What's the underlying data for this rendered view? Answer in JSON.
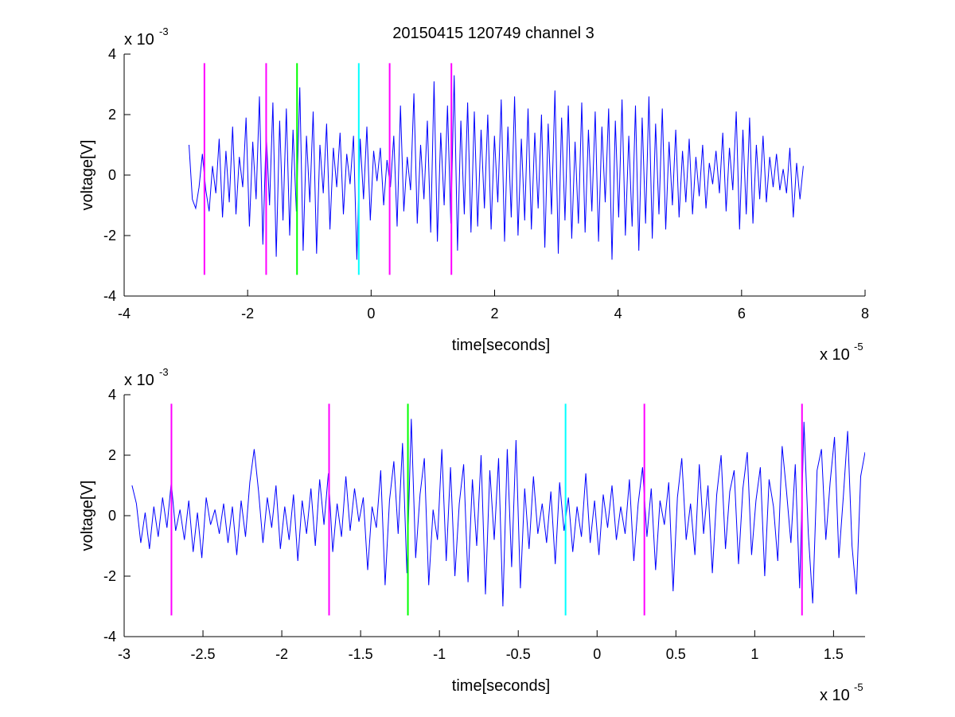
{
  "figure": {
    "title": "20150415 120749 channel 3"
  },
  "chart_data": [
    {
      "type": "line",
      "title": "20150415 120749 channel 3",
      "xlabel": "time[seconds]",
      "ylabel": "voltage[V]",
      "x_multiplier_label": "x 10",
      "x_multiplier_exp": "-5",
      "y_multiplier_label": "x 10",
      "y_multiplier_exp": "-3",
      "x_scale": 1e-05,
      "y_scale": 0.001,
      "xlim": [
        -4,
        8
      ],
      "ylim": [
        -4,
        4
      ],
      "xticks": [
        -4,
        -2,
        0,
        2,
        4,
        6,
        8
      ],
      "yticks": [
        -4,
        -2,
        0,
        2,
        4
      ],
      "xtick_labels": [
        "-4",
        "-2",
        "0",
        "2",
        "4",
        "6",
        "8"
      ],
      "ytick_labels": [
        "-4",
        "-2",
        "0",
        "2",
        "4"
      ],
      "grid": false,
      "series": [
        {
          "color": "#0000ff",
          "x_start": -2.95,
          "x_end": 7.0,
          "y_scaled_1e-3": [
            1.0,
            -0.8,
            -1.1,
            -0.4,
            0.7,
            -0.5,
            -1.2,
            0.3,
            -0.6,
            1.2,
            -1.4,
            0.8,
            -0.9,
            1.6,
            -1.3,
            0.6,
            -0.4,
            1.9,
            -1.7,
            1.1,
            -0.8,
            2.6,
            -2.3,
            1.4,
            -1.0,
            2.4,
            -2.7,
            1.8,
            -1.5,
            2.2,
            -2.0,
            1.5,
            -1.2,
            2.9,
            -2.5,
            1.3,
            -0.9,
            2.1,
            -2.6,
            1.0,
            -0.6,
            1.7,
            -1.8,
            0.9,
            -0.4,
            1.4,
            -1.3,
            0.7,
            -0.3,
            1.3,
            -2.8,
            1.2,
            -0.8,
            1.6,
            -1.5,
            0.8,
            -0.2,
            0.9,
            -1.0,
            0.5,
            -0.4,
            1.3,
            -1.7,
            2.3,
            -1.2,
            0.6,
            -0.5,
            2.7,
            -1.6,
            1.0,
            -0.8,
            1.8,
            -1.9,
            3.1,
            -2.2,
            1.4,
            -1.0,
            2.3,
            -1.6,
            3.3,
            -2.5,
            1.8,
            -1.3,
            2.4,
            -1.9,
            2.1,
            -1.7,
            1.5,
            -1.1,
            2.0,
            -1.8,
            1.3,
            -0.9,
            2.5,
            -2.2,
            1.6,
            -1.4,
            2.6,
            -2.0,
            1.2,
            -1.5,
            2.2,
            -1.8,
            1.4,
            -1.1,
            2.0,
            -2.4,
            1.7,
            -1.3,
            2.8,
            -2.6,
            1.9,
            -1.5,
            2.3,
            -2.1,
            1.1,
            -1.6,
            2.4,
            -1.9,
            1.5,
            -1.2,
            2.1,
            -2.2,
            1.6,
            -0.9,
            2.2,
            -2.8,
            1.8,
            -1.4,
            2.5,
            -2.0,
            1.3,
            -1.7,
            2.3,
            -2.5,
            1.9,
            -1.6,
            2.6,
            -2.1,
            1.7,
            -1.3,
            2.2,
            -1.8,
            1.1,
            -1.0,
            1.5,
            -1.4,
            0.8,
            -0.9,
            1.2,
            -1.3,
            0.6,
            -0.7,
            1.0,
            -1.1,
            0.4,
            -0.3,
            0.8,
            -0.6,
            1.4,
            -1.2,
            0.9,
            -0.5,
            2.1,
            -1.8,
            1.5,
            -1.3,
            1.9,
            -1.6,
            1.0,
            -0.8,
            1.3,
            -0.9,
            0.6,
            -0.4,
            0.7,
            -0.5,
            0.2,
            -0.6,
            0.9,
            -1.4,
            0.4,
            -0.8,
            0.3
          ]
        }
      ],
      "vlines": [
        {
          "x": -2.7,
          "color": "#ff00ff",
          "y_from": -3.3,
          "y_to": 3.7
        },
        {
          "x": -1.7,
          "color": "#ff00ff",
          "y_from": -3.3,
          "y_to": 3.7
        },
        {
          "x": -1.2,
          "color": "#00ff00",
          "y_from": -3.3,
          "y_to": 3.7
        },
        {
          "x": -0.2,
          "color": "#00ffff",
          "y_from": -3.3,
          "y_to": 3.7
        },
        {
          "x": 0.3,
          "color": "#ff00ff",
          "y_from": -3.3,
          "y_to": 3.7
        },
        {
          "x": 1.3,
          "color": "#ff00ff",
          "y_from": -3.3,
          "y_to": 3.7
        }
      ]
    },
    {
      "type": "line",
      "title": "",
      "xlabel": "time[seconds]",
      "ylabel": "voltage[V]",
      "x_multiplier_label": "x 10",
      "x_multiplier_exp": "-5",
      "y_multiplier_label": "x 10",
      "y_multiplier_exp": "-3",
      "x_scale": 1e-05,
      "y_scale": 0.001,
      "xlim": [
        -3.0,
        1.7
      ],
      "ylim": [
        -4,
        4
      ],
      "xticks": [
        -3,
        -2.5,
        -2,
        -1.5,
        -1,
        -0.5,
        0,
        0.5,
        1,
        1.5
      ],
      "yticks": [
        -4,
        -2,
        0,
        2,
        4
      ],
      "xtick_labels": [
        "-3",
        "-2.5",
        "-2",
        "-1.5",
        "-1",
        "-0.5",
        "0",
        "0.5",
        "1",
        "1.5"
      ],
      "ytick_labels": [
        "-4",
        "-2",
        "0",
        "2",
        "4"
      ],
      "grid": false,
      "series": [
        {
          "color": "#0000ff",
          "x_start": -2.95,
          "x_end": 1.7,
          "y_scaled_1e-3": [
            1.0,
            0.4,
            -0.9,
            0.1,
            -1.1,
            0.3,
            -0.7,
            0.6,
            -0.4,
            1.1,
            -0.5,
            0.2,
            -0.8,
            0.5,
            -1.2,
            0.1,
            -1.4,
            0.6,
            -0.3,
            0.2,
            -0.6,
            0.4,
            -0.9,
            0.3,
            -1.3,
            0.5,
            -0.7,
            1.1,
            2.2,
            0.8,
            -0.9,
            0.6,
            -0.4,
            1.0,
            -1.1,
            0.3,
            -0.8,
            0.7,
            -1.5,
            0.5,
            -0.6,
            0.9,
            -1.0,
            1.2,
            -0.3,
            1.4,
            -1.2,
            0.4,
            -0.7,
            1.3,
            -0.5,
            0.9,
            -0.2,
            0.6,
            -1.8,
            0.3,
            -0.4,
            1.5,
            -2.3,
            0.5,
            1.8,
            -0.6,
            2.4,
            -1.9,
            3.2,
            -1.4,
            0.7,
            1.9,
            -2.3,
            0.2,
            -0.8,
            2.2,
            -1.5,
            1.6,
            -2.0,
            0.4,
            1.7,
            -2.2,
            1.2,
            -1.0,
            2.0,
            -2.6,
            1.5,
            -0.8,
            1.9,
            -3.0,
            2.2,
            -1.7,
            2.5,
            -2.4,
            0.9,
            -1.1,
            1.3,
            -0.6,
            0.4,
            -0.9,
            0.8,
            -1.6,
            1.1,
            -0.5,
            0.6,
            -1.2,
            0.3,
            -0.7,
            1.4,
            -0.9,
            0.5,
            -1.3,
            0.7,
            -0.4,
            1.0,
            -0.8,
            0.3,
            -0.6,
            1.2,
            -1.5,
            0.4,
            1.6,
            -0.7,
            0.9,
            -1.8,
            0.5,
            -0.3,
            1.1,
            -2.5,
            0.6,
            1.9,
            -0.8,
            0.4,
            -1.3,
            1.7,
            -0.6,
            1.0,
            -1.9,
            0.7,
            2.0,
            -1.1,
            0.8,
            1.5,
            -1.6,
            0.9,
            2.1,
            -1.3,
            0.5,
            1.6,
            -2.0,
            1.2,
            0.3,
            -1.5,
            2.3,
            0.8,
            -0.9,
            1.7,
            -2.4,
            3.1,
            -0.6,
            -2.9,
            1.5,
            2.2,
            -0.8,
            1.1,
            2.6,
            -1.4,
            0.6,
            2.8,
            -1.0,
            -2.6,
            1.3,
            2.1
          ]
        }
      ],
      "vlines": [
        {
          "x": -2.7,
          "color": "#ff00ff",
          "y_from": -3.3,
          "y_to": 3.7
        },
        {
          "x": -1.7,
          "color": "#ff00ff",
          "y_from": -3.3,
          "y_to": 3.7
        },
        {
          "x": -1.2,
          "color": "#00ff00",
          "y_from": -3.3,
          "y_to": 3.7
        },
        {
          "x": -0.2,
          "color": "#00ffff",
          "y_from": -3.3,
          "y_to": 3.7
        },
        {
          "x": 0.3,
          "color": "#ff00ff",
          "y_from": -3.3,
          "y_to": 3.7
        },
        {
          "x": 1.3,
          "color": "#ff00ff",
          "y_from": -3.3,
          "y_to": 3.7
        }
      ]
    }
  ]
}
